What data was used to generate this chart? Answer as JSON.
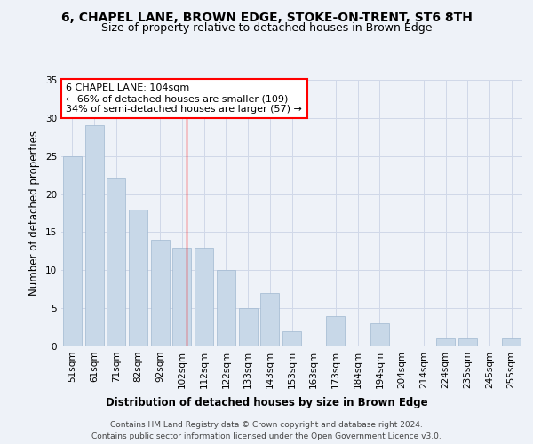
{
  "title_line1": "6, CHAPEL LANE, BROWN EDGE, STOKE-ON-TRENT, ST6 8TH",
  "title_line2": "Size of property relative to detached houses in Brown Edge",
  "xlabel": "Distribution of detached houses by size in Brown Edge",
  "ylabel": "Number of detached properties",
  "categories": [
    "51sqm",
    "61sqm",
    "71sqm",
    "82sqm",
    "92sqm",
    "102sqm",
    "112sqm",
    "122sqm",
    "133sqm",
    "143sqm",
    "153sqm",
    "163sqm",
    "173sqm",
    "184sqm",
    "194sqm",
    "204sqm",
    "214sqm",
    "224sqm",
    "235sqm",
    "245sqm",
    "255sqm"
  ],
  "values": [
    25,
    29,
    22,
    18,
    14,
    13,
    13,
    10,
    5,
    7,
    2,
    0,
    4,
    0,
    3,
    0,
    0,
    1,
    1,
    0,
    1
  ],
  "bar_color": "#c8d8e8",
  "bar_edge_color": "#a0b8d0",
  "grid_color": "#d0d8e8",
  "ref_line_color": "red",
  "annotation_text": "6 CHAPEL LANE: 104sqm\n← 66% of detached houses are smaller (109)\n34% of semi-detached houses are larger (57) →",
  "annotation_box_color": "white",
  "annotation_box_edge": "red",
  "footnote1": "Contains HM Land Registry data © Crown copyright and database right 2024.",
  "footnote2": "Contains public sector information licensed under the Open Government Licence v3.0.",
  "ylim": [
    0,
    35
  ],
  "yticks": [
    0,
    5,
    10,
    15,
    20,
    25,
    30,
    35
  ],
  "background_color": "#eef2f8",
  "title_fontsize": 10,
  "subtitle_fontsize": 9,
  "axis_label_fontsize": 8.5,
  "tick_fontsize": 7.5,
  "annotation_fontsize": 8,
  "footnote_fontsize": 6.5
}
